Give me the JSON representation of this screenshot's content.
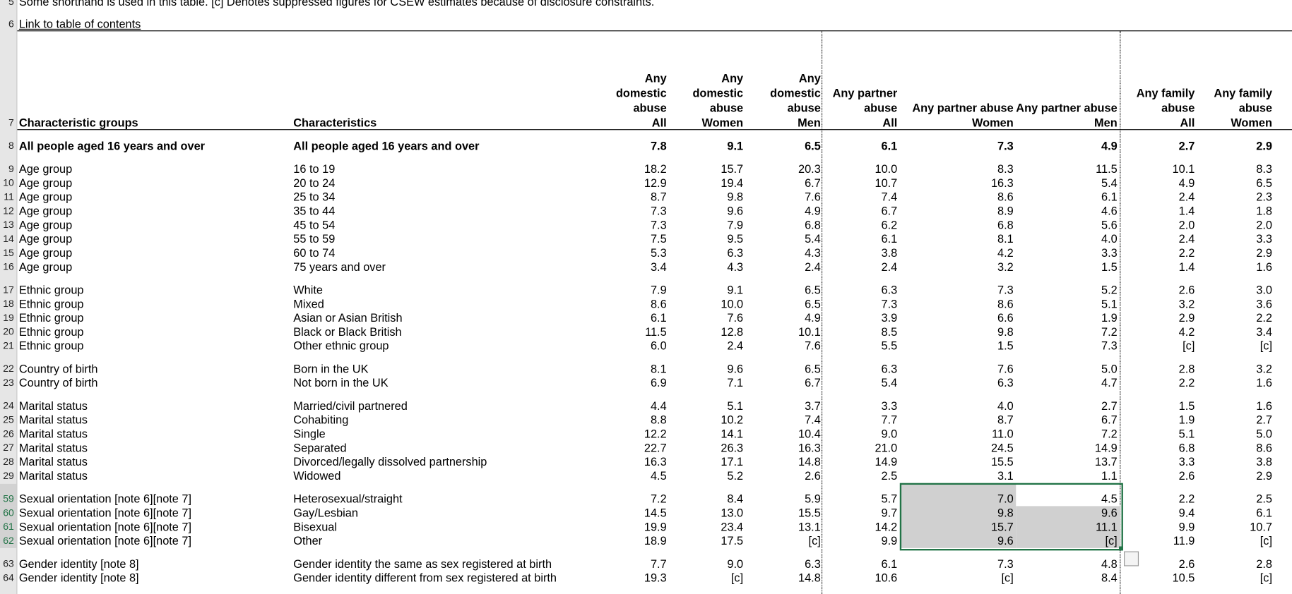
{
  "note_row": {
    "number": "5",
    "text": "Some shorthand is used in this table. [c] Denotes suppressed figures for CSEW estimates because of disclosure constraints."
  },
  "link_row": {
    "number": "6",
    "text": "Link to table of contents"
  },
  "table": {
    "header_number": "7",
    "headers": [
      [
        "Characteristic groups"
      ],
      [
        "Characteristics"
      ],
      [
        "Any",
        "domestic",
        "abuse",
        "All"
      ],
      [
        "Any",
        "domestic",
        "abuse",
        "Women"
      ],
      [
        "Any",
        "domestic",
        "abuse",
        "Men"
      ],
      [
        "Any partner",
        "abuse",
        "All"
      ],
      [
        "Any partner abuse",
        "Women"
      ],
      [
        "Any partner abuse",
        "Men"
      ],
      [
        "Any family",
        "abuse",
        "All"
      ],
      [
        "Any family",
        "abuse",
        "Women"
      ]
    ],
    "rows": [
      [
        "8",
        "All people aged 16 years and over",
        "All people aged 16 years and over",
        "7.8",
        "9.1",
        "6.5",
        "6.1",
        "7.3",
        "4.9",
        "2.7",
        "2.9"
      ],
      [
        "9",
        "Age group",
        "16 to 19",
        "18.2",
        "15.7",
        "20.3",
        "10.0",
        "8.3",
        "11.5",
        "10.1",
        "8.3"
      ],
      [
        "10",
        "Age group",
        "20 to 24",
        "12.9",
        "19.4",
        "6.7",
        "10.7",
        "16.3",
        "5.4",
        "4.9",
        "6.5"
      ],
      [
        "11",
        "Age group",
        "25 to 34",
        "8.7",
        "9.8",
        "7.6",
        "7.4",
        "8.6",
        "6.1",
        "2.4",
        "2.3"
      ],
      [
        "12",
        "Age group",
        "35 to 44",
        "7.3",
        "9.6",
        "4.9",
        "6.7",
        "8.9",
        "4.6",
        "1.4",
        "1.8"
      ],
      [
        "13",
        "Age group",
        "45 to 54",
        "7.3",
        "7.9",
        "6.8",
        "6.2",
        "6.8",
        "5.6",
        "2.0",
        "2.0"
      ],
      [
        "14",
        "Age group",
        "55 to 59",
        "7.5",
        "9.5",
        "5.4",
        "6.1",
        "8.1",
        "4.0",
        "2.4",
        "3.3"
      ],
      [
        "15",
        "Age group",
        "60 to 74",
        "5.3",
        "6.3",
        "4.3",
        "3.8",
        "4.2",
        "3.3",
        "2.2",
        "2.9"
      ],
      [
        "16",
        "Age group",
        "75 years and over",
        "3.4",
        "4.3",
        "2.4",
        "2.4",
        "3.2",
        "1.5",
        "1.4",
        "1.6"
      ],
      [
        "17",
        "Ethnic group",
        "White",
        "7.9",
        "9.1",
        "6.5",
        "6.3",
        "7.3",
        "5.2",
        "2.6",
        "3.0"
      ],
      [
        "18",
        "Ethnic group",
        "Mixed",
        "8.6",
        "10.0",
        "6.5",
        "7.3",
        "8.6",
        "5.1",
        "3.2",
        "3.6"
      ],
      [
        "19",
        "Ethnic group",
        "Asian or Asian British",
        "6.1",
        "7.6",
        "4.9",
        "3.9",
        "6.6",
        "1.9",
        "2.9",
        "2.2"
      ],
      [
        "20",
        "Ethnic group",
        "Black or Black British",
        "11.5",
        "12.8",
        "10.1",
        "8.5",
        "9.8",
        "7.2",
        "4.2",
        "3.4"
      ],
      [
        "21",
        "Ethnic group",
        "Other ethnic group",
        "6.0",
        "2.4",
        "7.6",
        "5.5",
        "1.5",
        "7.3",
        "[c]",
        "[c]"
      ],
      [
        "22",
        "Country of birth",
        "Born in the UK",
        "8.1",
        "9.6",
        "6.5",
        "6.3",
        "7.6",
        "5.0",
        "2.8",
        "3.2"
      ],
      [
        "23",
        "Country of birth",
        "Not born in the UK",
        "6.9",
        "7.1",
        "6.7",
        "5.4",
        "6.3",
        "4.7",
        "2.2",
        "1.6"
      ],
      [
        "24",
        "Marital status",
        "Married/civil partnered",
        "4.4",
        "5.1",
        "3.7",
        "3.3",
        "4.0",
        "2.7",
        "1.5",
        "1.6"
      ],
      [
        "25",
        "Marital status",
        "Cohabiting",
        "8.8",
        "10.2",
        "7.4",
        "7.7",
        "8.7",
        "6.7",
        "1.9",
        "2.7"
      ],
      [
        "26",
        "Marital status",
        "Single",
        "12.2",
        "14.1",
        "10.4",
        "9.0",
        "11.0",
        "7.2",
        "5.1",
        "5.0"
      ],
      [
        "27",
        "Marital status",
        "Separated",
        "22.7",
        "26.3",
        "16.3",
        "21.0",
        "24.5",
        "14.9",
        "6.8",
        "8.6"
      ],
      [
        "28",
        "Marital status",
        "Divorced/legally dissolved partnership",
        "16.3",
        "17.1",
        "14.8",
        "14.9",
        "15.5",
        "13.7",
        "3.3",
        "3.8"
      ],
      [
        "29",
        "Marital status",
        "Widowed",
        "4.5",
        "5.2",
        "2.6",
        "2.5",
        "3.1",
        "1.1",
        "2.6",
        "2.9"
      ],
      [
        "59",
        "Sexual orientation [note 6][note 7]",
        "Heterosexual/straight",
        "7.2",
        "8.4",
        "5.9",
        "5.7",
        "7.0",
        "4.5",
        "2.2",
        "2.5"
      ],
      [
        "60",
        "Sexual orientation [note 6][note 7]",
        "Gay/Lesbian",
        "14.5",
        "13.0",
        "15.5",
        "9.7",
        "9.8",
        "9.6",
        "9.4",
        "6.1"
      ],
      [
        "61",
        "Sexual orientation [note 6][note 7]",
        "Bisexual",
        "19.9",
        "23.4",
        "13.1",
        "14.2",
        "15.7",
        "11.1",
        "9.9",
        "10.7"
      ],
      [
        "62",
        "Sexual orientation [note 6][note 7]",
        "Other",
        "18.9",
        "17.5",
        "[c]",
        "9.9",
        "9.6",
        "[c]",
        "11.9",
        "[c]"
      ],
      [
        "63",
        "Gender identity [note 8]",
        "Gender identity the same as sex registered at birth",
        "7.7",
        "9.0",
        "6.3",
        "6.1",
        "7.3",
        "4.8",
        "2.6",
        "2.8"
      ],
      [
        "64",
        "Gender identity [note 8]",
        "Gender identity different from sex registered at birth",
        "19.3",
        "[c]",
        "14.8",
        "10.6",
        "[c]",
        "8.4",
        "10.5",
        "[c]"
      ]
    ]
  }
}
